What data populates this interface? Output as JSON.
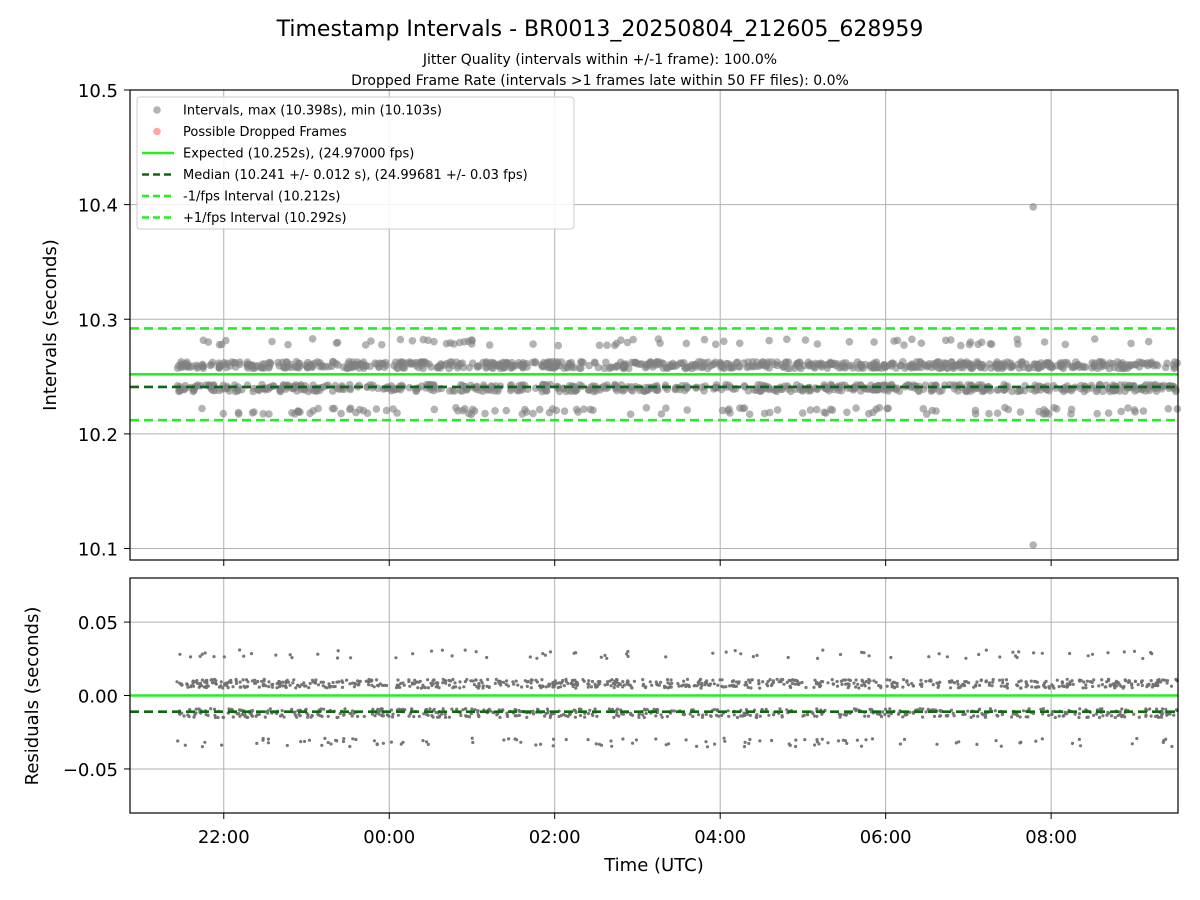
{
  "chart_data": [
    {
      "type": "scatter",
      "title": "Timestamp Intervals - BR0013_20250804_212605_628959",
      "subtitle_lines": [
        "Jitter Quality (intervals within +/-1 frame): 100.0%",
        "Dropped Frame Rate (intervals >1 frames late within 50 FF files): 0.0%"
      ],
      "ylabel": "Intervals (seconds)",
      "ylim": [
        10.09,
        10.5
      ],
      "yticks": [
        10.1,
        10.2,
        10.3,
        10.4,
        10.5
      ],
      "ytick_labels": [
        "10.1",
        "10.2",
        "10.3",
        "10.4",
        "10.5"
      ],
      "xlim": [
        "2025-08-04T20:52",
        "2025-08-05T09:32"
      ],
      "grid": true,
      "legend_position": "top-left",
      "legend": [
        {
          "label": "Intervals, max (10.398s), min (10.103s)",
          "marker": "circle",
          "color": "#808080"
        },
        {
          "label": "Possible Dropped Frames",
          "marker": "circle",
          "color": "#ff6b6b"
        },
        {
          "label": "Expected (10.252s), (24.97000 fps)",
          "style": "solid",
          "color": "#22ee22"
        },
        {
          "label": "Median (10.241 +/- 0.012 s), (24.99681 +/- 0.03 fps)",
          "style": "dashed",
          "color": "#116611"
        },
        {
          "label": "-1/fps Interval (10.212s)",
          "style": "dashed",
          "color": "#22ee22"
        },
        {
          "label": "+1/fps Interval (10.292s)",
          "style": "dashed",
          "color": "#22ee22"
        }
      ],
      "reference_lines": [
        {
          "name": "Expected",
          "y": 10.252,
          "color": "#22ee22",
          "style": "solid"
        },
        {
          "name": "Median",
          "y": 10.241,
          "color": "#116611",
          "style": "dashed"
        },
        {
          "name": "-1/fps Interval",
          "y": 10.212,
          "color": "#22ee22",
          "style": "dashed"
        },
        {
          "name": "+1/fps Interval",
          "y": 10.292,
          "color": "#22ee22",
          "style": "dashed"
        }
      ],
      "series": [
        {
          "name": "Intervals",
          "color": "#808080",
          "time_range": [
            "2025-08-04T21:26",
            "2025-08-05T09:32"
          ],
          "levels": [
            {
              "y": 10.26,
              "share": 0.48,
              "spread": 0.003
            },
            {
              "y": 10.24,
              "share": 0.4,
              "spread": 0.003
            },
            {
              "y": 10.22,
              "share": 0.07,
              "spread": 0.003
            },
            {
              "y": 10.28,
              "share": 0.05,
              "spread": 0.003
            }
          ],
          "outliers": [
            {
              "x": "2025-08-05T07:47",
              "y": 10.398
            },
            {
              "x": "2025-08-05T07:47",
              "y": 10.103
            }
          ]
        }
      ]
    },
    {
      "type": "scatter",
      "xlabel": "Time (UTC)",
      "ylabel": "Residuals (seconds)",
      "ylim": [
        -0.08,
        0.08
      ],
      "yticks": [
        -0.05,
        0.0,
        0.05
      ],
      "ytick_labels": [
        "−0.05",
        "0.00",
        "0.05"
      ],
      "xlim": [
        "2025-08-04T20:52",
        "2025-08-05T09:32"
      ],
      "xticks": [
        "2025-08-04T22:00",
        "2025-08-05T00:00",
        "2025-08-05T02:00",
        "2025-08-05T04:00",
        "2025-08-05T06:00",
        "2025-08-05T08:00"
      ],
      "xtick_labels": [
        "22:00",
        "00:00",
        "02:00",
        "04:00",
        "06:00",
        "08:00"
      ],
      "grid": true,
      "reference_lines": [
        {
          "name": "Expected",
          "y": 0.0,
          "color": "#22ee22",
          "style": "solid"
        },
        {
          "name": "Median",
          "y": -0.011,
          "color": "#116611",
          "style": "dashed"
        }
      ],
      "series": [
        {
          "name": "Residuals",
          "color": "#707070",
          "time_range": [
            "2025-08-04T21:26",
            "2025-08-05T09:32"
          ],
          "levels": [
            {
              "y": 0.008,
              "share": 0.48,
              "spread": 0.003
            },
            {
              "y": -0.012,
              "share": 0.4,
              "spread": 0.003
            },
            {
              "y": -0.032,
              "share": 0.07,
              "spread": 0.003
            },
            {
              "y": 0.028,
              "share": 0.05,
              "spread": 0.003
            }
          ]
        }
      ]
    }
  ]
}
